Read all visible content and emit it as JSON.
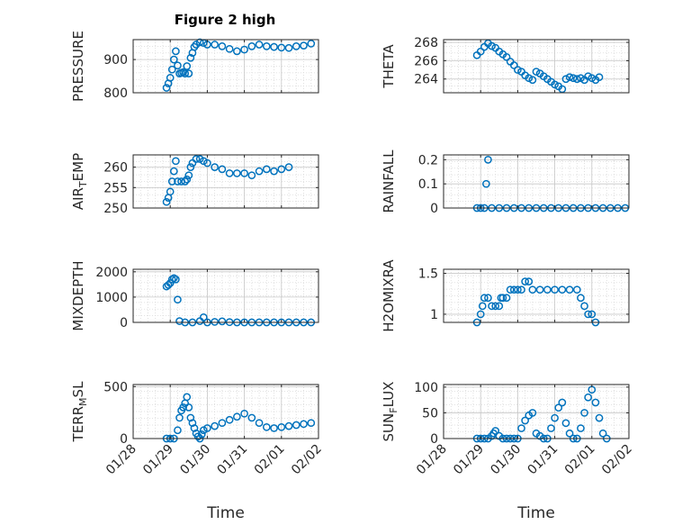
{
  "figure": {
    "title": "Figure 2 high",
    "marker_color": "#0072BD"
  },
  "chart_data": [
    {
      "type": "scatter",
      "ylabel": "PRESSURE",
      "ylim": [
        800,
        960
      ],
      "yticks": [
        800,
        900
      ],
      "xlim": [
        0,
        5
      ],
      "xticks": [
        0,
        1,
        2,
        3,
        4,
        5
      ],
      "grid": true,
      "points": [
        [
          0.9,
          815
        ],
        [
          0.95,
          828
        ],
        [
          1.0,
          845
        ],
        [
          1.05,
          870
        ],
        [
          1.1,
          900
        ],
        [
          1.15,
          925
        ],
        [
          1.2,
          882
        ],
        [
          1.25,
          858
        ],
        [
          1.3,
          860
        ],
        [
          1.35,
          862
        ],
        [
          1.4,
          858
        ],
        [
          1.45,
          880
        ],
        [
          1.5,
          858
        ],
        [
          1.55,
          905
        ],
        [
          1.6,
          920
        ],
        [
          1.65,
          938
        ],
        [
          1.7,
          945
        ],
        [
          1.8,
          952
        ],
        [
          1.9,
          950
        ],
        [
          2.0,
          945
        ],
        [
          2.2,
          945
        ],
        [
          2.4,
          940
        ],
        [
          2.6,
          932
        ],
        [
          2.8,
          925
        ],
        [
          3.0,
          930
        ],
        [
          3.2,
          940
        ],
        [
          3.4,
          945
        ],
        [
          3.6,
          940
        ],
        [
          3.8,
          938
        ],
        [
          4.0,
          936
        ],
        [
          4.2,
          935
        ],
        [
          4.4,
          940
        ],
        [
          4.6,
          942
        ],
        [
          4.8,
          948
        ]
      ]
    },
    {
      "type": "scatter",
      "ylabel": "THETA",
      "ylim": [
        262.5,
        268.3
      ],
      "yticks": [
        264,
        266,
        268
      ],
      "xlim": [
        0,
        5
      ],
      "xticks": [
        0,
        1,
        2,
        3,
        4,
        5
      ],
      "grid": true,
      "points": [
        [
          0.9,
          266.6
        ],
        [
          1.0,
          267.0
        ],
        [
          1.1,
          267.5
        ],
        [
          1.2,
          267.9
        ],
        [
          1.3,
          267.6
        ],
        [
          1.4,
          267.4
        ],
        [
          1.5,
          267.0
        ],
        [
          1.6,
          266.7
        ],
        [
          1.7,
          266.4
        ],
        [
          1.8,
          265.9
        ],
        [
          1.9,
          265.5
        ],
        [
          2.0,
          265.0
        ],
        [
          2.1,
          264.8
        ],
        [
          2.2,
          264.4
        ],
        [
          2.3,
          264.1
        ],
        [
          2.4,
          263.9
        ],
        [
          2.5,
          264.8
        ],
        [
          2.6,
          264.6
        ],
        [
          2.7,
          264.3
        ],
        [
          2.8,
          264.0
        ],
        [
          2.9,
          263.7
        ],
        [
          3.0,
          263.4
        ],
        [
          3.1,
          263.2
        ],
        [
          3.2,
          262.9
        ],
        [
          3.3,
          264.0
        ],
        [
          3.4,
          264.2
        ],
        [
          3.5,
          264.1
        ],
        [
          3.6,
          264.0
        ],
        [
          3.7,
          264.1
        ],
        [
          3.8,
          263.9
        ],
        [
          3.9,
          264.3
        ],
        [
          4.0,
          264.1
        ],
        [
          4.1,
          263.9
        ],
        [
          4.2,
          264.2
        ]
      ]
    },
    {
      "type": "scatter",
      "ylabel": "AIR_TEMP",
      "ylim": [
        250,
        263
      ],
      "yticks": [
        250,
        255,
        260
      ],
      "xlim": [
        0,
        5
      ],
      "xticks": [
        0,
        1,
        2,
        3,
        4,
        5
      ],
      "grid": true,
      "points": [
        [
          0.9,
          251.5
        ],
        [
          0.95,
          252.5
        ],
        [
          1.0,
          254.0
        ],
        [
          1.05,
          256.5
        ],
        [
          1.1,
          259.0
        ],
        [
          1.15,
          261.5
        ],
        [
          1.2,
          256.5
        ],
        [
          1.3,
          256.5
        ],
        [
          1.4,
          256.5
        ],
        [
          1.45,
          257.0
        ],
        [
          1.5,
          258.0
        ],
        [
          1.55,
          260.0
        ],
        [
          1.6,
          261.0
        ],
        [
          1.7,
          262.0
        ],
        [
          1.8,
          262.0
        ],
        [
          1.9,
          261.5
        ],
        [
          2.0,
          261.0
        ],
        [
          2.2,
          260.0
        ],
        [
          2.4,
          259.5
        ],
        [
          2.6,
          258.5
        ],
        [
          2.8,
          258.5
        ],
        [
          3.0,
          258.5
        ],
        [
          3.2,
          258.0
        ],
        [
          3.4,
          259.0
        ],
        [
          3.6,
          259.5
        ],
        [
          3.8,
          259.0
        ],
        [
          4.0,
          259.5
        ],
        [
          4.2,
          260.0
        ]
      ]
    },
    {
      "type": "scatter",
      "ylabel": "RAINFALL",
      "ylim": [
        0,
        0.22
      ],
      "yticks": [
        0,
        0.1,
        0.2
      ],
      "xlim": [
        0,
        5
      ],
      "xticks": [
        0,
        1,
        2,
        3,
        4,
        5
      ],
      "grid": true,
      "points": [
        [
          0.9,
          0
        ],
        [
          1.0,
          0
        ],
        [
          1.1,
          0
        ],
        [
          1.15,
          0.1
        ],
        [
          1.2,
          0.2
        ],
        [
          1.3,
          0
        ],
        [
          1.5,
          0
        ],
        [
          1.7,
          0
        ],
        [
          1.9,
          0
        ],
        [
          2.1,
          0
        ],
        [
          2.3,
          0
        ],
        [
          2.5,
          0
        ],
        [
          2.7,
          0
        ],
        [
          2.9,
          0
        ],
        [
          3.1,
          0
        ],
        [
          3.3,
          0
        ],
        [
          3.5,
          0
        ],
        [
          3.7,
          0
        ],
        [
          3.9,
          0
        ],
        [
          4.1,
          0
        ],
        [
          4.3,
          0
        ],
        [
          4.5,
          0
        ],
        [
          4.7,
          0
        ],
        [
          4.9,
          0
        ]
      ]
    },
    {
      "type": "scatter",
      "ylabel": "MIXDEPTH",
      "ylim": [
        0,
        2100
      ],
      "yticks": [
        0,
        1000,
        2000
      ],
      "xlim": [
        0,
        5
      ],
      "xticks": [
        0,
        1,
        2,
        3,
        4,
        5
      ],
      "grid": true,
      "points": [
        [
          0.9,
          1420
        ],
        [
          0.95,
          1480
        ],
        [
          1.0,
          1550
        ],
        [
          1.05,
          1700
        ],
        [
          1.1,
          1750
        ],
        [
          1.15,
          1700
        ],
        [
          1.2,
          900
        ],
        [
          1.25,
          50
        ],
        [
          1.4,
          0
        ],
        [
          1.6,
          0
        ],
        [
          1.8,
          50
        ],
        [
          1.9,
          200
        ],
        [
          2.0,
          0
        ],
        [
          2.2,
          20
        ],
        [
          2.4,
          40
        ],
        [
          2.6,
          10
        ],
        [
          2.8,
          0
        ],
        [
          3.0,
          0
        ],
        [
          3.2,
          0
        ],
        [
          3.4,
          0
        ],
        [
          3.6,
          0
        ],
        [
          3.8,
          0
        ],
        [
          4.0,
          0
        ],
        [
          4.2,
          0
        ],
        [
          4.4,
          0
        ],
        [
          4.6,
          0
        ],
        [
          4.8,
          0
        ]
      ]
    },
    {
      "type": "scatter",
      "ylabel": "H2OMIXRA",
      "ylim": [
        0.9,
        1.55
      ],
      "yticks": [
        1,
        1.5
      ],
      "xlim": [
        0,
        5
      ],
      "xticks": [
        0,
        1,
        2,
        3,
        4,
        5
      ],
      "grid": true,
      "points": [
        [
          0.9,
          0.9
        ],
        [
          1.0,
          1.0
        ],
        [
          1.05,
          1.1
        ],
        [
          1.1,
          1.2
        ],
        [
          1.2,
          1.2
        ],
        [
          1.3,
          1.1
        ],
        [
          1.4,
          1.1
        ],
        [
          1.5,
          1.1
        ],
        [
          1.55,
          1.2
        ],
        [
          1.6,
          1.2
        ],
        [
          1.7,
          1.2
        ],
        [
          1.8,
          1.3
        ],
        [
          1.9,
          1.3
        ],
        [
          2.0,
          1.3
        ],
        [
          2.1,
          1.3
        ],
        [
          2.2,
          1.4
        ],
        [
          2.3,
          1.4
        ],
        [
          2.4,
          1.3
        ],
        [
          2.6,
          1.3
        ],
        [
          2.8,
          1.3
        ],
        [
          3.0,
          1.3
        ],
        [
          3.2,
          1.3
        ],
        [
          3.4,
          1.3
        ],
        [
          3.6,
          1.3
        ],
        [
          3.7,
          1.2
        ],
        [
          3.8,
          1.1
        ],
        [
          3.9,
          1.0
        ],
        [
          4.0,
          1.0
        ],
        [
          4.1,
          0.9
        ]
      ]
    },
    {
      "type": "scatter",
      "ylabel": "TERR_MSL",
      "ylim": [
        0,
        520
      ],
      "yticks": [
        0,
        500
      ],
      "xlim": [
        0,
        5
      ],
      "xticks": [
        0,
        1,
        2,
        3,
        4,
        5
      ],
      "xticklabels": [
        "01/28",
        "01/29",
        "01/30",
        "01/31",
        "02/01",
        "02/02"
      ],
      "xlabel": "Time",
      "grid": true,
      "points": [
        [
          0.9,
          0
        ],
        [
          1.0,
          0
        ],
        [
          1.1,
          0
        ],
        [
          1.2,
          80
        ],
        [
          1.25,
          200
        ],
        [
          1.3,
          270
        ],
        [
          1.35,
          300
        ],
        [
          1.4,
          340
        ],
        [
          1.45,
          400
        ],
        [
          1.5,
          300
        ],
        [
          1.55,
          200
        ],
        [
          1.6,
          150
        ],
        [
          1.65,
          100
        ],
        [
          1.7,
          50
        ],
        [
          1.75,
          20
        ],
        [
          1.8,
          0
        ],
        [
          1.85,
          40
        ],
        [
          1.9,
          80
        ],
        [
          2.0,
          100
        ],
        [
          2.2,
          120
        ],
        [
          2.4,
          150
        ],
        [
          2.6,
          180
        ],
        [
          2.8,
          210
        ],
        [
          3.0,
          240
        ],
        [
          3.2,
          200
        ],
        [
          3.4,
          150
        ],
        [
          3.6,
          110
        ],
        [
          3.8,
          100
        ],
        [
          4.0,
          110
        ],
        [
          4.2,
          120
        ],
        [
          4.4,
          130
        ],
        [
          4.6,
          140
        ],
        [
          4.8,
          150
        ]
      ]
    },
    {
      "type": "scatter",
      "ylabel": "SUN_FLUX",
      "ylim": [
        0,
        105
      ],
      "yticks": [
        0,
        50,
        100
      ],
      "xlim": [
        0,
        5
      ],
      "xticks": [
        0,
        1,
        2,
        3,
        4,
        5
      ],
      "xticklabels": [
        "01/28",
        "01/29",
        "01/30",
        "01/31",
        "02/01",
        "02/02"
      ],
      "xlabel": "Time",
      "grid": true,
      "points": [
        [
          0.9,
          0
        ],
        [
          1.0,
          0
        ],
        [
          1.1,
          0
        ],
        [
          1.2,
          0
        ],
        [
          1.3,
          5
        ],
        [
          1.35,
          10
        ],
        [
          1.4,
          15
        ],
        [
          1.5,
          5
        ],
        [
          1.6,
          0
        ],
        [
          1.7,
          0
        ],
        [
          1.8,
          0
        ],
        [
          1.9,
          0
        ],
        [
          2.0,
          0
        ],
        [
          2.1,
          20
        ],
        [
          2.2,
          35
        ],
        [
          2.3,
          45
        ],
        [
          2.4,
          50
        ],
        [
          2.5,
          10
        ],
        [
          2.6,
          5
        ],
        [
          2.7,
          0
        ],
        [
          2.8,
          0
        ],
        [
          2.9,
          20
        ],
        [
          3.0,
          40
        ],
        [
          3.1,
          60
        ],
        [
          3.2,
          70
        ],
        [
          3.3,
          30
        ],
        [
          3.4,
          10
        ],
        [
          3.5,
          0
        ],
        [
          3.6,
          0
        ],
        [
          3.7,
          20
        ],
        [
          3.8,
          50
        ],
        [
          3.9,
          80
        ],
        [
          4.0,
          95
        ],
        [
          4.1,
          70
        ],
        [
          4.2,
          40
        ],
        [
          4.3,
          10
        ],
        [
          4.4,
          0
        ]
      ]
    }
  ]
}
